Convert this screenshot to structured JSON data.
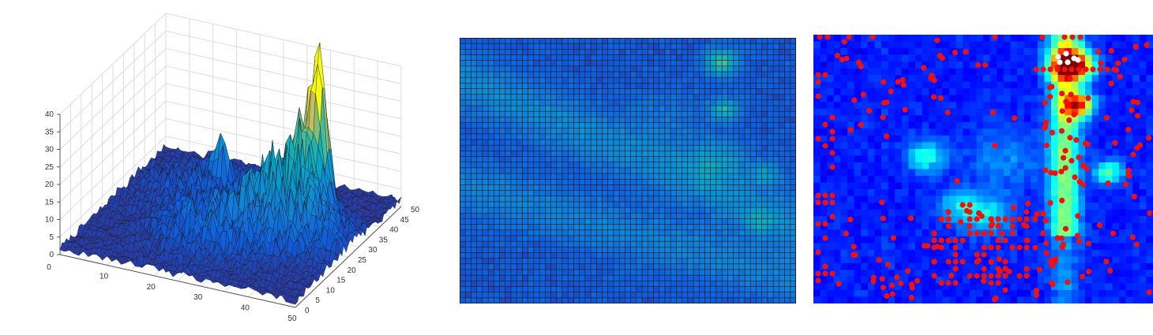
{
  "chart_data": [
    {
      "type": "surface",
      "title": "",
      "xlabel": "",
      "ylabel": "",
      "zlabel": "",
      "xlim": [
        0,
        50
      ],
      "ylim": [
        0,
        50
      ],
      "zlim": [
        0,
        40
      ],
      "grid": true,
      "colormap": "parula",
      "x_ticks": [
        "10",
        "20",
        "30",
        "40",
        "50"
      ],
      "y_ticks": [
        "0",
        "5",
        "10",
        "15",
        "20",
        "25",
        "30",
        "35",
        "40",
        "45",
        "50"
      ],
      "z_ticks": [
        "0",
        "5",
        "10",
        "15",
        "20",
        "25",
        "30",
        "35",
        "40"
      ],
      "origin_label": "0",
      "z_peak": 38,
      "peaks": [
        {
          "x": 39,
          "y": 36,
          "z": 38
        },
        {
          "x": 37,
          "y": 33,
          "z": 27
        },
        {
          "x": 35,
          "y": 42,
          "z": 17
        },
        {
          "x": 17,
          "y": 38,
          "z": 16
        }
      ]
    },
    {
      "type": "heatmap",
      "title": "",
      "colormap": "parula",
      "grid": true,
      "rows": 47,
      "cols": 59,
      "axes_visible": false
    },
    {
      "type": "heatmap",
      "title": "",
      "colormap": "jet",
      "grid": false,
      "rows": 40,
      "cols": 50,
      "axes_visible": false,
      "markers": {
        "red": "#ee1111",
        "white": "#ffffff"
      }
    }
  ],
  "colors": {
    "surface_edge": "#1a1a1a",
    "grid": "#dcdcdc",
    "axis": "#555555"
  }
}
